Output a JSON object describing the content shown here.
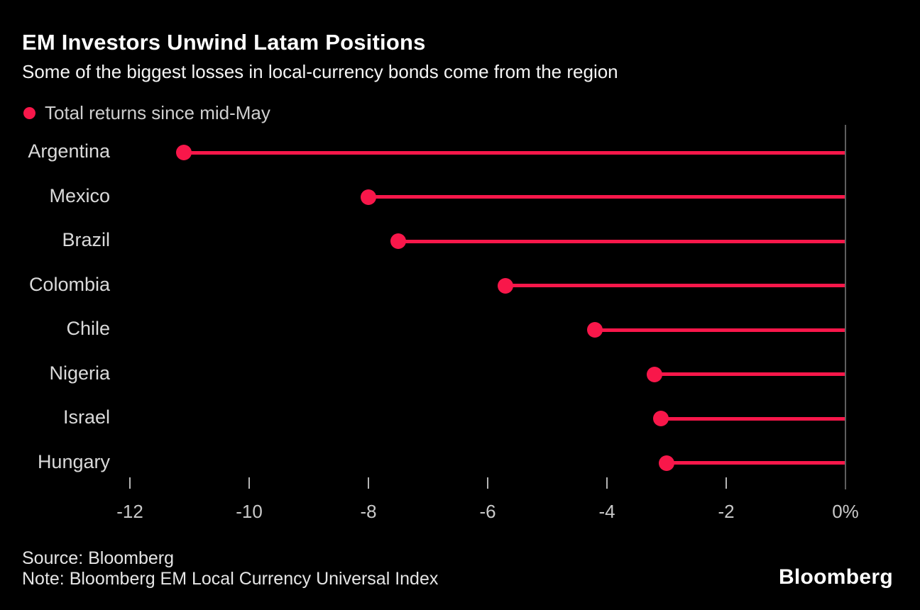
{
  "header": {
    "title": "EM Investors Unwind Latam Positions",
    "subtitle": "Some of the biggest losses in local-currency bonds come from the region"
  },
  "legend": {
    "label": "Total returns since mid-May",
    "marker_color": "#f8174a"
  },
  "chart_data": {
    "type": "bar",
    "subtype": "lollipop",
    "orientation": "horizontal",
    "title": "EM Investors Unwind Latam Positions",
    "subtitle": "Some of the biggest losses in local-currency bonds come from the region",
    "series_name": "Total returns since mid-May",
    "categories": [
      "Argentina",
      "Mexico",
      "Brazil",
      "Colombia",
      "Chile",
      "Nigeria",
      "Israel",
      "Hungary"
    ],
    "values": [
      -11.1,
      -8.0,
      -7.5,
      -5.7,
      -4.2,
      -3.2,
      -3.1,
      -3.0
    ],
    "unit": "%",
    "xlabel": "",
    "ylabel": "",
    "x_ticks": [
      -12,
      -10,
      -8,
      -6,
      -4,
      -2,
      0
    ],
    "x_tick_labels": [
      "-12",
      "-10",
      "-8",
      "-6",
      "-4",
      "-2",
      "0%"
    ],
    "xlim": [
      -13,
      0
    ],
    "grid": false,
    "legend_position": "top-left",
    "accent_color": "#f8174a",
    "axis_line_color": "#5e5e5e",
    "background": "#000000"
  },
  "footer": {
    "source": "Source: Bloomberg",
    "note": "Note: Bloomberg EM Local Currency Universal Index",
    "logo": "Bloomberg"
  }
}
